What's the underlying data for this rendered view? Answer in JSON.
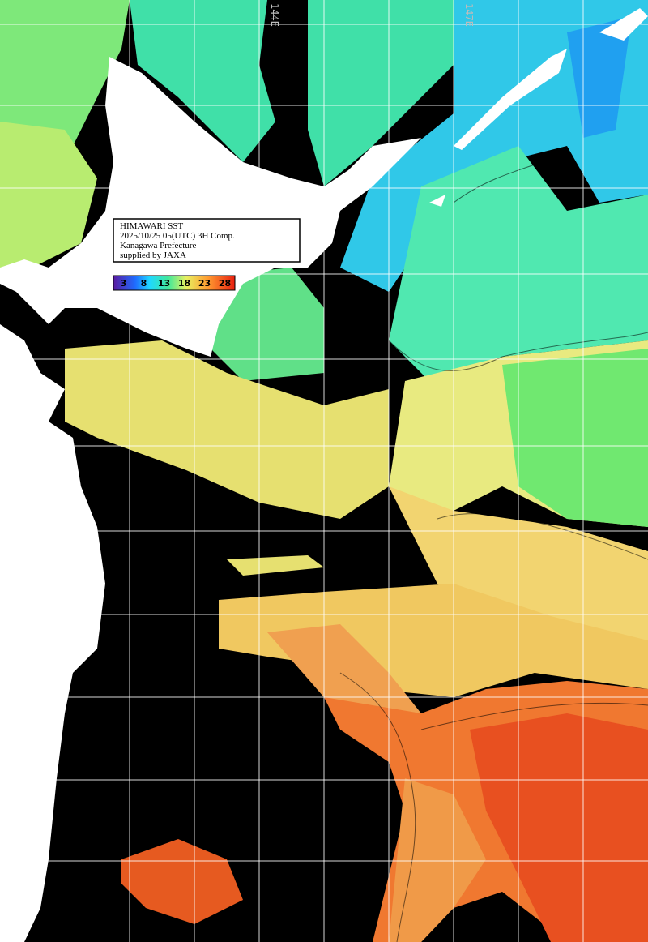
{
  "info_box": {
    "lines": [
      "HIMAWARI SST",
      "2025/10/25 05(UTC) 3H Comp.",
      "Kanagawa Prefecture",
      "supplied by JAXA"
    ]
  },
  "colorbar": {
    "labels": [
      3,
      8,
      13,
      18,
      23,
      28
    ]
  },
  "longitude_labels": [
    "144E",
    "147E"
  ]
}
